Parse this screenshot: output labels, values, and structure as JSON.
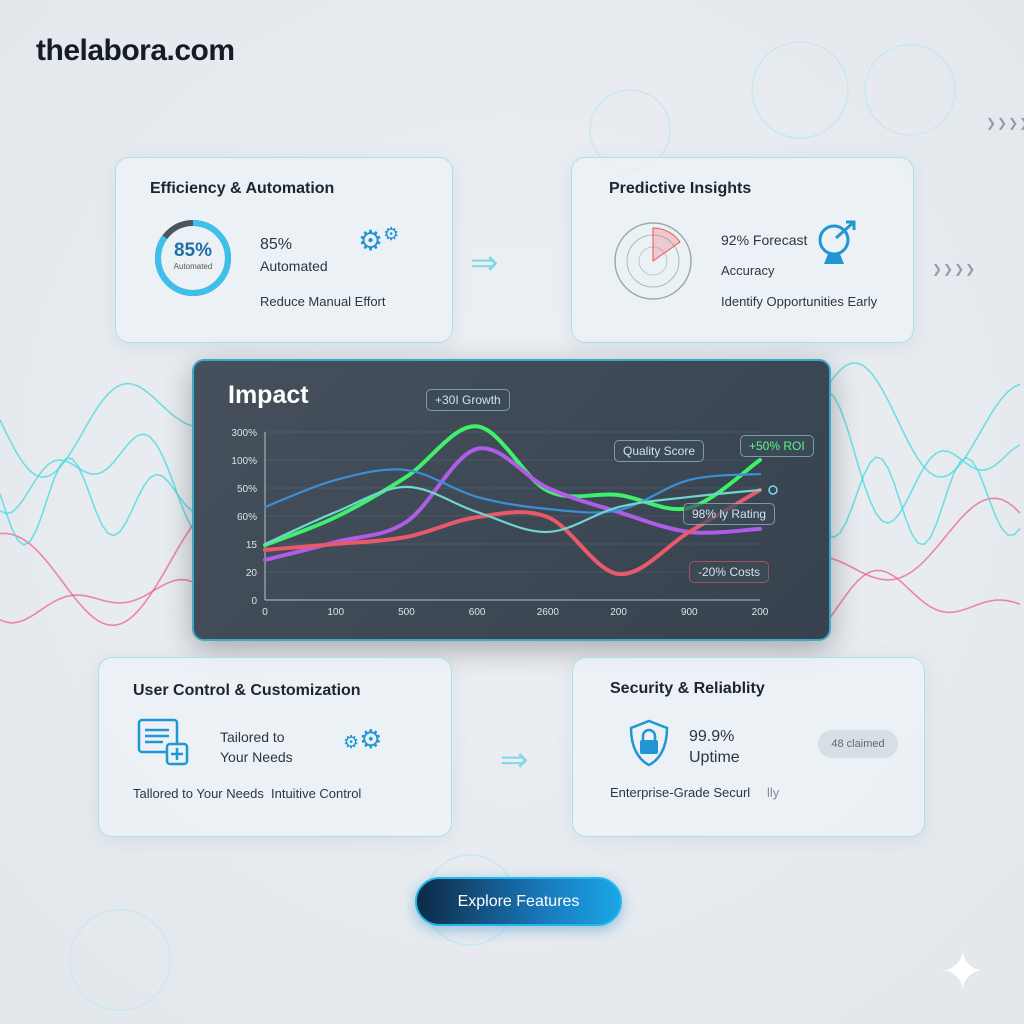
{
  "brand": "thelabora.com",
  "cards": {
    "efficiency": {
      "title": "Efficiency & Automation",
      "ring_value": "85%",
      "ring_label": "Automated",
      "ring_fraction": 0.85,
      "stat": "85%",
      "stat_label": "Automated",
      "caption": "Reduce Manual Effort",
      "icon": "gears-icon"
    },
    "predictive": {
      "title": "Predictive Insights",
      "stat": "92% Forecast",
      "stat_label": "Accuracy",
      "caption": "Identify Opportunities Early",
      "icon": "radar-icon"
    },
    "control": {
      "title": "User Control & Customization",
      "stat": "Tailored to",
      "stat_label": "Your Needs",
      "caption1": "Tallored to Your Needs",
      "caption2": "Intuitive Control",
      "icon": "form-settings-icon"
    },
    "security": {
      "title": "Security & Reliablity",
      "stat": "99.9%",
      "stat_label": "Uptime",
      "caption": "Enterprise-Grade Securl",
      "caption_tail": "lly",
      "pill": "48 claimed",
      "icon": "shield-lock-icon"
    }
  },
  "chart_data": {
    "type": "line",
    "title": "Impact",
    "x_ticks": [
      "0",
      "100",
      "500",
      "600",
      "2600",
      "200",
      "900",
      "200"
    ],
    "y_ticks": [
      "0",
      "20",
      "15",
      "60%",
      "50%",
      "100%",
      "300%"
    ],
    "grid": true,
    "series": [
      {
        "color": "#3ff06a",
        "values": [
          1.96,
          2.96,
          4.4,
          6.2,
          3.9,
          3.75,
          3.29,
          5.0
        ]
      },
      {
        "color": "#b05ce6",
        "values": [
          1.43,
          2.07,
          2.79,
          5.4,
          4.0,
          3.14,
          2.43,
          2.54
        ]
      },
      {
        "color": "#e85a6a",
        "values": [
          1.79,
          2.0,
          2.25,
          2.96,
          2.96,
          0.93,
          2.43,
          3.93
        ]
      },
      {
        "color": "#3b8fd6",
        "values": [
          3.32,
          4.29,
          4.64,
          3.68,
          3.25,
          3.21,
          4.29,
          4.5
        ]
      },
      {
        "color": "#6fd6cf",
        "values": [
          2.0,
          3.14,
          4.04,
          3.14,
          2.43,
          3.32,
          3.68,
          3.93
        ]
      }
    ],
    "annotations": [
      "+30I Growth",
      "Quality Score",
      "+50% ROI",
      "98% ly Rating",
      "-20% Costs"
    ]
  },
  "cta": {
    "label": "Explore Features"
  },
  "colors": {
    "accent": "#1aa6e8",
    "teal": "#45d9e0",
    "pink": "#f0638f"
  }
}
